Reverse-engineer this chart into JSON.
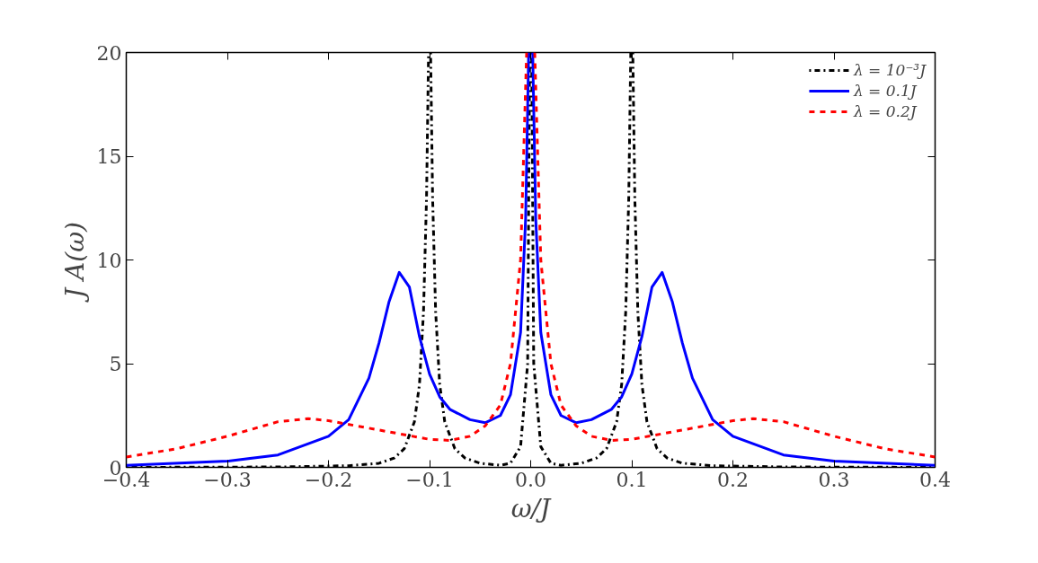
{
  "chart_data": {
    "type": "line",
    "xlabel": "ω/J",
    "ylabel": "J A(ω)",
    "xlim": [
      -0.4,
      0.4
    ],
    "ylim": [
      0,
      20
    ],
    "xticks": [
      {
        "value": -0.4,
        "label": "−0.4"
      },
      {
        "value": -0.3,
        "label": "−0.3"
      },
      {
        "value": -0.2,
        "label": "−0.2"
      },
      {
        "value": -0.1,
        "label": "−0.1"
      },
      {
        "value": 0,
        "label": "0.0"
      },
      {
        "value": 0.1,
        "label": "0.1"
      },
      {
        "value": 0.2,
        "label": "0.2"
      },
      {
        "value": 0.3,
        "label": "0.3"
      },
      {
        "value": 0.4,
        "label": "0.4"
      }
    ],
    "yticks": [
      0,
      5,
      10,
      15,
      20
    ],
    "grid": false,
    "legend": "top right",
    "marker": "none",
    "series": [
      {
        "name": "λ = 10⁻³J",
        "color": "#000000",
        "line_style": "dashdot",
        "x": [
          -0.4,
          -0.25,
          -0.18,
          -0.15,
          -0.135,
          -0.125,
          -0.115,
          -0.11,
          -0.106,
          -0.103,
          -0.101,
          -0.1,
          -0.099,
          -0.097,
          -0.094,
          -0.09,
          -0.085,
          -0.075,
          -0.065,
          -0.05,
          -0.03,
          -0.02,
          -0.01,
          -0.003,
          -0.001,
          0,
          0.001,
          0.003,
          0.01,
          0.02,
          0.03,
          0.05,
          0.065,
          0.075,
          0.085,
          0.09,
          0.094,
          0.097,
          0.099,
          0.1,
          0.101,
          0.103,
          0.106,
          0.11,
          0.115,
          0.125,
          0.135,
          0.15,
          0.18,
          0.25,
          0.4
        ],
        "values": [
          0,
          0.02,
          0.08,
          0.2,
          0.45,
          0.9,
          2.2,
          4,
          7.5,
          13,
          20,
          null,
          20,
          13,
          7.5,
          4,
          2.2,
          0.9,
          0.45,
          0.2,
          0.1,
          0.2,
          1,
          5,
          20,
          null,
          20,
          5,
          1,
          0.2,
          0.1,
          0.2,
          0.45,
          0.9,
          2.2,
          4,
          7.5,
          13,
          20,
          null,
          20,
          13,
          7.5,
          4,
          2.2,
          0.9,
          0.45,
          0.2,
          0.08,
          0.02,
          0
        ]
      },
      {
        "name": "λ = 0.1J",
        "color": "#0000ff",
        "line_style": "solid",
        "x": [
          -0.4,
          -0.3,
          -0.25,
          -0.2,
          -0.18,
          -0.16,
          -0.15,
          -0.14,
          -0.13,
          -0.12,
          -0.11,
          -0.1,
          -0.09,
          -0.08,
          -0.06,
          -0.045,
          -0.03,
          -0.02,
          -0.01,
          -0.005,
          -0.002,
          0,
          0.002,
          0.005,
          0.01,
          0.02,
          0.03,
          0.045,
          0.06,
          0.08,
          0.09,
          0.1,
          0.11,
          0.12,
          0.13,
          0.14,
          0.15,
          0.16,
          0.18,
          0.2,
          0.25,
          0.3,
          0.4
        ],
        "values": [
          0.1,
          0.3,
          0.6,
          1.5,
          2.3,
          4.3,
          6,
          8,
          9.4,
          8.7,
          6.3,
          4.5,
          3.4,
          2.8,
          2.3,
          2.15,
          2.5,
          3.5,
          6.5,
          12,
          20,
          null,
          20,
          12,
          6.5,
          3.5,
          2.5,
          2.15,
          2.3,
          2.8,
          3.4,
          4.5,
          6.3,
          8.7,
          9.4,
          8,
          6,
          4.3,
          2.3,
          1.5,
          0.6,
          0.3,
          0.1
        ]
      },
      {
        "name": "λ = 0.2J",
        "color": "#ff0000",
        "line_style": "dashed",
        "x": [
          -0.4,
          -0.35,
          -0.3,
          -0.25,
          -0.22,
          -0.2,
          -0.15,
          -0.1,
          -0.08,
          -0.06,
          -0.045,
          -0.03,
          -0.02,
          -0.01,
          -0.004,
          0,
          0.004,
          0.01,
          0.02,
          0.03,
          0.045,
          0.06,
          0.08,
          0.1,
          0.15,
          0.2,
          0.22,
          0.25,
          0.3,
          0.35,
          0.4
        ],
        "values": [
          0.5,
          0.9,
          1.5,
          2.2,
          2.35,
          2.25,
          1.8,
          1.35,
          1.3,
          1.5,
          2,
          3,
          5,
          10,
          20,
          null,
          20,
          10,
          5,
          3,
          2,
          1.5,
          1.3,
          1.35,
          1.8,
          2.25,
          2.35,
          2.2,
          1.5,
          0.9,
          0.5
        ]
      }
    ]
  }
}
